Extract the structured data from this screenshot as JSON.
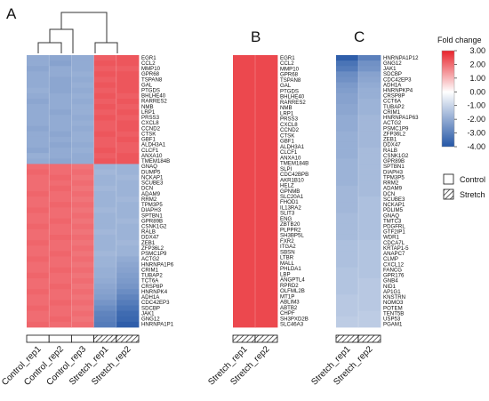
{
  "chart_data": [
    {
      "panel": "A",
      "type": "heatmap",
      "columns": [
        "Control_rep1",
        "Control_rep2",
        "Control_rep3",
        "Stretch_rep1",
        "Stretch_rep2"
      ],
      "column_groups": [
        "Control",
        "Control",
        "Control",
        "Stretch",
        "Stretch"
      ],
      "dendrogram": "columns clustered: (Control_rep1, Control_rep2), Control_rep3, (Stretch_rep1, Stretch_rep2)",
      "rows": [
        "EGR1",
        "CCL2",
        "MMP10",
        "GPR68",
        "TSPAN8",
        "GAL",
        "PTGDS",
        "BHLHE40",
        "RARRES2",
        "NMB",
        "LRP1",
        "PRSS3",
        "CXCL8",
        "CCND2",
        "CTSK",
        "GBF1",
        "ALDH3A1",
        "CLCF1",
        "ANXA10",
        "TMEM184B",
        "GNAQ",
        "DUMP5",
        "NCKAP1",
        "SCUBE3",
        "DCN",
        "ADAM9",
        "RRM2",
        "TPM3P5",
        "DIAPH3",
        "SPTBN1",
        "GPR89B",
        "CSNK1G2",
        "RALB",
        "DDX47",
        "ZEB1",
        "ZFP36L2",
        "PSMC1P9",
        "ACTG2",
        "HNRNPA1P6",
        "CRIM1",
        "TUBAP2",
        "TCT6A",
        "CRSP8P",
        "HNRNPK4",
        "ADH1A",
        "CDC42EP3",
        "SDCBP",
        "JAK1",
        "GNG12",
        "HNRNPA1P1"
      ],
      "values": [
        [
          -2.0,
          -2.1,
          -2.0,
          2.2,
          2.3
        ],
        [
          -2.0,
          -2.2,
          -2.0,
          2.3,
          2.3
        ],
        [
          -2.1,
          -2.0,
          -2.0,
          2.2,
          2.2
        ],
        [
          -2.0,
          -2.0,
          -1.9,
          2.3,
          2.3
        ],
        [
          -2.0,
          -2.1,
          -2.0,
          2.2,
          2.3
        ],
        [
          -2.0,
          -2.1,
          -1.9,
          2.3,
          2.3
        ],
        [
          -1.9,
          -2.1,
          -2.0,
          2.2,
          2.3
        ],
        [
          -2.0,
          -2.0,
          -1.9,
          2.3,
          2.2
        ],
        [
          -2.1,
          -2.0,
          -2.0,
          2.2,
          2.3
        ],
        [
          -2.0,
          -2.0,
          -1.9,
          2.3,
          2.2
        ],
        [
          -2.0,
          -2.1,
          -1.9,
          2.2,
          2.3
        ],
        [
          -2.0,
          -2.0,
          -2.0,
          2.3,
          2.2
        ],
        [
          -2.0,
          -2.0,
          -1.9,
          2.2,
          2.3
        ],
        [
          -2.1,
          -2.0,
          -2.0,
          2.2,
          2.3
        ],
        [
          -2.0,
          -2.1,
          -1.9,
          2.3,
          2.2
        ],
        [
          -2.0,
          -2.0,
          -1.9,
          2.2,
          2.3
        ],
        [
          -2.0,
          -2.1,
          -2.0,
          2.2,
          2.2
        ],
        [
          -2.1,
          -2.0,
          -1.9,
          2.3,
          2.2
        ],
        [
          -1.9,
          -2.0,
          -2.0,
          2.2,
          2.3
        ],
        [
          -2.0,
          -2.1,
          -2.0,
          2.3,
          2.3
        ],
        [
          2.0,
          2.0,
          1.9,
          -1.8,
          -1.8
        ],
        [
          2.1,
          2.0,
          2.0,
          -1.7,
          -1.8
        ],
        [
          2.0,
          2.1,
          1.9,
          -1.8,
          -1.7
        ],
        [
          2.0,
          2.0,
          2.0,
          -1.8,
          -1.8
        ],
        [
          2.0,
          2.1,
          1.9,
          -1.7,
          -1.8
        ],
        [
          2.1,
          2.0,
          2.0,
          -1.8,
          -1.8
        ],
        [
          2.0,
          2.0,
          1.9,
          -1.8,
          -1.7
        ],
        [
          2.0,
          2.1,
          2.0,
          -1.8,
          -1.8
        ],
        [
          2.1,
          2.0,
          1.9,
          -1.7,
          -1.8
        ],
        [
          2.0,
          2.0,
          2.0,
          -1.8,
          -1.8
        ],
        [
          2.0,
          2.1,
          1.9,
          -1.8,
          -1.7
        ],
        [
          2.1,
          2.0,
          2.0,
          -1.8,
          -1.8
        ],
        [
          2.0,
          2.0,
          1.9,
          -1.7,
          -1.8
        ],
        [
          2.0,
          2.1,
          2.0,
          -1.8,
          -1.8
        ],
        [
          2.1,
          2.0,
          1.9,
          -1.8,
          -1.7
        ],
        [
          2.0,
          2.0,
          2.0,
          -1.8,
          -1.8
        ],
        [
          2.0,
          2.1,
          1.9,
          -1.7,
          -1.8
        ],
        [
          2.1,
          2.0,
          2.0,
          -1.8,
          -2.0
        ],
        [
          2.0,
          2.0,
          1.9,
          -1.8,
          -2.1
        ],
        [
          2.0,
          2.1,
          2.0,
          -1.9,
          -2.2
        ],
        [
          2.1,
          2.0,
          1.9,
          -1.9,
          -2.3
        ],
        [
          2.0,
          2.0,
          2.0,
          -2.0,
          -2.4
        ],
        [
          2.0,
          2.1,
          1.9,
          -2.1,
          -2.5
        ],
        [
          2.1,
          2.0,
          2.0,
          -2.2,
          -2.7
        ],
        [
          2.0,
          2.0,
          1.9,
          -2.3,
          -2.9
        ],
        [
          2.0,
          2.1,
          2.0,
          -2.5,
          -3.1
        ],
        [
          2.1,
          2.0,
          1.9,
          -2.7,
          -3.3
        ],
        [
          2.0,
          2.0,
          2.0,
          -2.9,
          -3.5
        ],
        [
          2.0,
          2.1,
          1.9,
          -3.0,
          -3.6
        ],
        [
          2.1,
          2.0,
          2.0,
          -3.1,
          -3.8
        ]
      ]
    },
    {
      "panel": "B",
      "type": "heatmap",
      "columns": [
        "Stretch_rep1",
        "Stretch_rep2"
      ],
      "column_groups": [
        "Stretch",
        "Stretch"
      ],
      "rows": [
        "EGR1",
        "CCL2",
        "MMP10",
        "GPR68",
        "TSPAN8",
        "GAL",
        "PTGDS",
        "BHLHE40",
        "RARRES2",
        "NMB",
        "LRP1",
        "PRSS3",
        "CXCL8",
        "CCND2",
        "CTSK",
        "GBF1",
        "ALDH3A1",
        "CLCF1",
        "ANXA10",
        "TMEM184B",
        "SLPI",
        "CDC42BPB",
        "AKR1B10",
        "HELZ",
        "GPNMB",
        "SLC20A1",
        "FHOD1",
        "IL13RA2",
        "SLIT3",
        "ENG",
        "ZBTB20",
        "PLPPR2",
        "SH3BP5L",
        "FXR2",
        "ITGA2",
        "SBSN",
        "LTBR",
        "MALL",
        "PHLDA1",
        "LBP",
        "ANGPTL4",
        "RPRD2",
        "OLFML2B",
        "MT1P",
        "ABLIM3",
        "ABTB2",
        "CHPF",
        "SH3PXD2B",
        "SLC46A3"
      ],
      "values_by_row": [
        2.5,
        2.5,
        2.5,
        2.5,
        2.5,
        2.5,
        2.5,
        2.5,
        2.5,
        2.5,
        2.5,
        2.5,
        2.5,
        2.5,
        2.5,
        2.5,
        2.5,
        2.5,
        2.5,
        2.5,
        2.5,
        2.5,
        2.5,
        2.5,
        2.5,
        2.5,
        2.5,
        2.5,
        2.5,
        2.5,
        2.5,
        2.5,
        2.5,
        2.5,
        2.5,
        2.5,
        2.5,
        2.5,
        2.5,
        2.5,
        2.5,
        2.5,
        2.5,
        2.5,
        2.5,
        2.5,
        2.5,
        2.5,
        2.5
      ]
    },
    {
      "panel": "C",
      "type": "heatmap",
      "columns": [
        "Stretch_rep1",
        "Stretch_rep2"
      ],
      "column_groups": [
        "Stretch",
        "Stretch"
      ],
      "rows": [
        "HNRNPA1P12",
        "GNG12",
        "JAK1",
        "SDCBP",
        "CDC42EP3",
        "ADH1A",
        "HNRNPKP4",
        "CRSP8P",
        "CCT6A",
        "TUBAP2",
        "CRIM1",
        "HNRNPA1P63",
        "ACTG2",
        "PSMC1P9",
        "ZFP36L2",
        "ZEB1",
        "DDX47",
        "RALB",
        "CSNK1G2",
        "GPR89B",
        "SPTBN1",
        "DIAPH3",
        "TPM3P5",
        "RRM2",
        "ADAM9",
        "DCN",
        "SCUBE3",
        "NCKAP1",
        "PDLIM5",
        "GNAQ",
        "TMTC3",
        "PDGFRL",
        "GTF2IP1",
        "WDR1",
        "CDCA7L",
        "KRTAP1-5",
        "ANAPC7",
        "CLMP",
        "CXCL12",
        "FANCG",
        "GPR176",
        "GNB4",
        "NID1",
        "AP1G1",
        "KNSTRN",
        "NOMO3",
        "POTEM",
        "TENT5B",
        "USP53",
        "PGAM1"
      ],
      "values": [
        [
          -3.8,
          -3.0
        ],
        [
          -3.3,
          -2.6
        ],
        [
          -3.1,
          -2.5
        ],
        [
          -2.7,
          -2.2
        ],
        [
          -2.6,
          -2.1
        ],
        [
          -2.4,
          -2.0
        ],
        [
          -2.3,
          -1.9
        ],
        [
          -2.2,
          -1.9
        ],
        [
          -2.2,
          -1.8
        ],
        [
          -2.1,
          -1.8
        ],
        [
          -2.1,
          -1.8
        ],
        [
          -2.0,
          -1.7
        ],
        [
          -2.0,
          -1.7
        ],
        [
          -2.0,
          -1.7
        ],
        [
          -1.9,
          -1.7
        ],
        [
          -1.9,
          -1.7
        ],
        [
          -1.9,
          -1.7
        ],
        [
          -1.9,
          -1.6
        ],
        [
          -1.9,
          -1.6
        ],
        [
          -1.8,
          -1.6
        ],
        [
          -1.8,
          -1.6
        ],
        [
          -1.8,
          -1.6
        ],
        [
          -1.8,
          -1.6
        ],
        [
          -1.8,
          -1.6
        ],
        [
          -1.7,
          -1.6
        ],
        [
          -1.7,
          -1.6
        ],
        [
          -1.7,
          -1.5
        ],
        [
          -1.7,
          -1.5
        ],
        [
          -1.7,
          -1.5
        ],
        [
          -1.6,
          -1.5
        ],
        [
          -1.6,
          -1.5
        ],
        [
          -1.6,
          -1.5
        ],
        [
          -1.6,
          -1.5
        ],
        [
          -1.6,
          -1.5
        ],
        [
          -1.5,
          -1.4
        ],
        [
          -1.5,
          -1.4
        ],
        [
          -1.5,
          -1.4
        ],
        [
          -1.5,
          -1.4
        ],
        [
          -1.5,
          -1.4
        ],
        [
          -1.4,
          -1.4
        ],
        [
          -1.4,
          -1.4
        ],
        [
          -1.4,
          -1.3
        ],
        [
          -1.4,
          -1.3
        ],
        [
          -1.4,
          -1.3
        ],
        [
          -1.3,
          -1.3
        ],
        [
          -1.3,
          -1.3
        ],
        [
          -1.3,
          -1.3
        ],
        [
          -1.3,
          -1.2
        ],
        [
          -1.2,
          -1.2
        ],
        [
          -1.2,
          -1.2
        ]
      ]
    }
  ],
  "panels": [
    {
      "letter": "A"
    },
    {
      "letter": "B"
    },
    {
      "letter": "C"
    }
  ],
  "legend": {
    "title": "Fold change",
    "ticks": [
      "3.00",
      "2.00",
      "1.00",
      "0.00",
      "-1.00",
      "-2.00",
      "-3.00",
      "-4.00"
    ],
    "scale_range": [
      -4,
      3
    ],
    "colors": {
      "high": "#e8232b",
      "mid": "#ffffff",
      "low": "#2456a6"
    },
    "groups": [
      {
        "label": "Control",
        "pattern": "plain"
      },
      {
        "label": "Stretch",
        "pattern": "hatched"
      }
    ]
  }
}
